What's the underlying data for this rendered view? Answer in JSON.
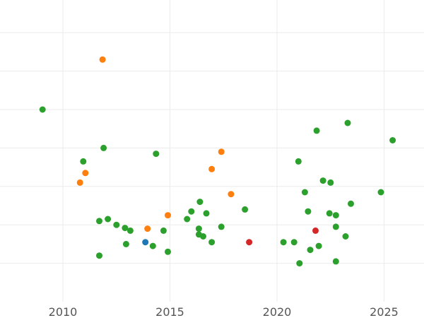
{
  "chart_data": {
    "type": "scatter",
    "title": "",
    "xlabel": "",
    "ylabel": "",
    "xlim": [
      2006.3,
      2026.9
    ],
    "ylim": [
      0,
      8
    ],
    "x_ticks": [
      2010,
      2015,
      2020,
      2025
    ],
    "x_tick_labels": [
      "2010",
      "2015",
      "2020",
      "2025"
    ],
    "y_gridlines": [
      1,
      2,
      3,
      4,
      5,
      6,
      7
    ],
    "grid": true,
    "legend": "none",
    "series": [
      {
        "color": "#2ca02c",
        "points": [
          [
            2009.05,
            5.0
          ],
          [
            2010.95,
            3.65
          ],
          [
            2011.9,
            4.0
          ],
          [
            2011.7,
            2.1
          ],
          [
            2012.1,
            2.15
          ],
          [
            2012.5,
            2.0
          ],
          [
            2012.95,
            1.5
          ],
          [
            2013.15,
            1.85
          ],
          [
            2012.9,
            1.92
          ],
          [
            2011.7,
            1.2
          ],
          [
            2014.35,
            3.85
          ],
          [
            2014.7,
            1.85
          ],
          [
            2014.2,
            1.45
          ],
          [
            2014.9,
            1.3
          ],
          [
            2015.8,
            2.15
          ],
          [
            2016.0,
            2.35
          ],
          [
            2016.4,
            2.6
          ],
          [
            2016.35,
            1.9
          ],
          [
            2016.35,
            1.75
          ],
          [
            2016.55,
            1.7
          ],
          [
            2016.7,
            2.3
          ],
          [
            2016.95,
            1.55
          ],
          [
            2017.4,
            1.95
          ],
          [
            2018.5,
            2.4
          ],
          [
            2020.3,
            1.55
          ],
          [
            2020.8,
            1.55
          ],
          [
            2021.05,
            1.0
          ],
          [
            2021.0,
            3.65
          ],
          [
            2021.3,
            2.85
          ],
          [
            2021.45,
            2.35
          ],
          [
            2021.55,
            1.35
          ],
          [
            2021.85,
            4.45
          ],
          [
            2021.95,
            1.45
          ],
          [
            2022.15,
            3.15
          ],
          [
            2022.45,
            2.3
          ],
          [
            2022.5,
            3.1
          ],
          [
            2022.75,
            1.95
          ],
          [
            2022.75,
            2.25
          ],
          [
            2022.75,
            1.05
          ],
          [
            2023.2,
            1.7
          ],
          [
            2023.3,
            4.65
          ],
          [
            2023.45,
            2.55
          ],
          [
            2024.85,
            2.85
          ],
          [
            2025.4,
            4.2
          ]
        ]
      },
      {
        "color": "#ff7f0e",
        "points": [
          [
            2010.8,
            3.1
          ],
          [
            2011.05,
            3.35
          ],
          [
            2011.85,
            6.3
          ],
          [
            2013.95,
            1.9
          ],
          [
            2014.9,
            2.25
          ],
          [
            2016.95,
            3.45
          ],
          [
            2017.4,
            3.9
          ],
          [
            2017.85,
            2.8
          ]
        ]
      },
      {
        "color": "#1f77b4",
        "points": [
          [
            2013.85,
            1.55
          ]
        ]
      },
      {
        "color": "#d62728",
        "points": [
          [
            2018.7,
            1.55
          ],
          [
            2021.8,
            1.85
          ]
        ]
      }
    ]
  }
}
